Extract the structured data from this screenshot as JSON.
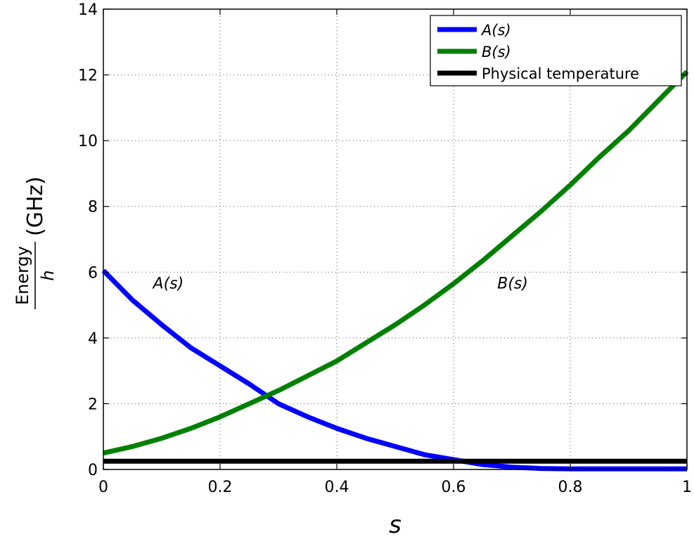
{
  "chart_data": {
    "type": "line",
    "xlabel": "s",
    "ylabel": {
      "numerator": "Energy",
      "denominator": "h",
      "unit": "(GHz)"
    },
    "xlim": [
      0,
      1
    ],
    "ylim": [
      0,
      14
    ],
    "x_ticks": [
      0,
      0.2,
      0.4,
      0.6,
      0.8,
      1
    ],
    "x_tick_labels": [
      "0",
      "0.2",
      "0.4",
      "0.6",
      "0.8",
      "1"
    ],
    "y_ticks": [
      0,
      2,
      4,
      6,
      8,
      10,
      12,
      14
    ],
    "y_tick_labels": [
      "0",
      "2",
      "4",
      "6",
      "8",
      "10",
      "12",
      "14"
    ],
    "grid": true,
    "legend_position": "top-right",
    "series": [
      {
        "name": "A(s)",
        "color": "#0000ff",
        "x": [
          0,
          0.05,
          0.1,
          0.15,
          0.2,
          0.25,
          0.3,
          0.35,
          0.4,
          0.45,
          0.5,
          0.55,
          0.6,
          0.65,
          0.7,
          0.75,
          0.8,
          0.85,
          0.9,
          0.95,
          1.0
        ],
        "y": [
          6.05,
          5.15,
          4.4,
          3.7,
          3.15,
          2.6,
          2.0,
          1.6,
          1.25,
          0.95,
          0.7,
          0.45,
          0.3,
          0.15,
          0.07,
          0.03,
          0.02,
          0.02,
          0.02,
          0.02,
          0.02
        ]
      },
      {
        "name": "B(s)",
        "color": "#008000",
        "x": [
          0,
          0.05,
          0.1,
          0.15,
          0.2,
          0.25,
          0.3,
          0.35,
          0.4,
          0.45,
          0.5,
          0.55,
          0.6,
          0.65,
          0.7,
          0.75,
          0.8,
          0.85,
          0.9,
          0.95,
          1.0
        ],
        "y": [
          0.5,
          0.7,
          0.95,
          1.25,
          1.6,
          2.0,
          2.4,
          2.85,
          3.3,
          3.85,
          4.4,
          5.0,
          5.65,
          6.35,
          7.1,
          7.85,
          8.65,
          9.5,
          10.3,
          11.2,
          12.1
        ]
      },
      {
        "name": "Physical temperature",
        "color": "#000000",
        "x": [
          0,
          1
        ],
        "y": [
          0.25,
          0.25
        ]
      }
    ],
    "annotations": [
      {
        "text": "A(s)",
        "x": 0.085,
        "y": 5.5
      },
      {
        "text": "B(s)",
        "x": 0.675,
        "y": 5.5
      }
    ]
  }
}
